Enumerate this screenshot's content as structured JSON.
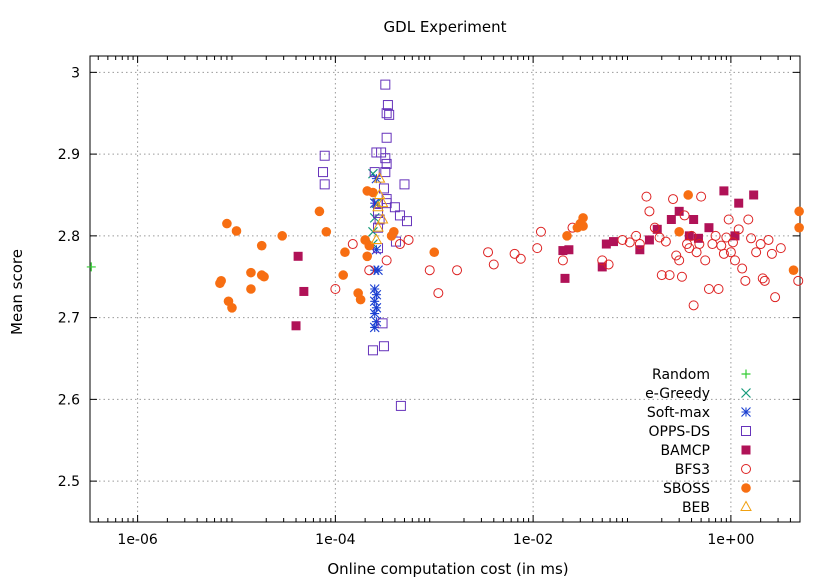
{
  "chart_data": {
    "type": "scatter",
    "title": "GDL Experiment",
    "xlabel": "Online computation cost (in ms)",
    "ylabel": "Mean score",
    "xscale": "log",
    "xlim": [
      3.3e-07,
      5
    ],
    "ylim": [
      2.45,
      3.02
    ],
    "xticks": [
      {
        "value": 1e-06,
        "label": "1e-06"
      },
      {
        "value": 0.0001,
        "label": "1e-04"
      },
      {
        "value": 0.01,
        "label": "1e-02"
      },
      {
        "value": 1,
        "label": "1e+00"
      }
    ],
    "yticks": [
      {
        "value": 2.5,
        "label": "2.5"
      },
      {
        "value": 2.6,
        "label": "2.6"
      },
      {
        "value": 2.7,
        "label": "2.7"
      },
      {
        "value": 2.8,
        "label": "2.8"
      },
      {
        "value": 2.9,
        "label": "2.9"
      },
      {
        "value": 3,
        "label": "3"
      }
    ],
    "grid": true,
    "legend_position": "bottom-right",
    "series": [
      {
        "name": "Random",
        "marker": "plus",
        "color": "#33cc33",
        "points": [
          [
            3.4e-07,
            2.762
          ]
        ]
      },
      {
        "name": "e-Greedy",
        "marker": "x",
        "color": "#159a7a",
        "points": [
          [
            0.00024,
            2.876
          ],
          [
            0.00024,
            2.805
          ],
          [
            0.00025,
            2.822
          ],
          [
            0.00026,
            2.84
          ],
          [
            0.00024,
            2.79
          ]
        ]
      },
      {
        "name": "Soft-max",
        "marker": "asterisk",
        "color": "#1a3fd1",
        "points": [
          [
            0.00025,
            2.758
          ],
          [
            0.00027,
            2.758
          ],
          [
            0.00025,
            2.735
          ],
          [
            0.00026,
            2.728
          ],
          [
            0.00025,
            2.72
          ],
          [
            0.00026,
            2.712
          ],
          [
            0.00025,
            2.705
          ],
          [
            0.00026,
            2.695
          ],
          [
            0.00025,
            2.688
          ],
          [
            0.00026,
            2.783
          ],
          [
            0.00025,
            2.84
          ],
          [
            0.00026,
            2.87
          ]
        ]
      },
      {
        "name": "OPPS-DS",
        "marker": "square-open",
        "color": "#6633bb",
        "points": [
          [
            0.00032,
            2.985
          ],
          [
            0.00034,
            2.96
          ],
          [
            0.00033,
            2.95
          ],
          [
            0.00035,
            2.948
          ],
          [
            0.00033,
            2.92
          ],
          [
            0.00032,
            2.895
          ],
          [
            0.00033,
            2.888
          ],
          [
            0.00032,
            2.878
          ],
          [
            0.00026,
            2.902
          ],
          [
            0.00029,
            2.902
          ],
          [
            0.00025,
            2.878
          ],
          [
            7.8e-05,
            2.898
          ],
          [
            7.5e-05,
            2.878
          ],
          [
            7.8e-05,
            2.863
          ],
          [
            0.0005,
            2.863
          ],
          [
            0.00031,
            2.858
          ],
          [
            0.00033,
            2.845
          ],
          [
            0.00027,
            2.84
          ],
          [
            0.00027,
            2.828
          ],
          [
            0.00028,
            2.82
          ],
          [
            0.00033,
            2.84
          ],
          [
            0.0004,
            2.835
          ],
          [
            0.00045,
            2.825
          ],
          [
            0.00053,
            2.818
          ],
          [
            0.00027,
            2.81
          ],
          [
            0.00041,
            2.793
          ],
          [
            0.00027,
            2.785
          ],
          [
            0.0003,
            2.693
          ],
          [
            0.00024,
            2.66
          ],
          [
            0.00031,
            2.665
          ],
          [
            0.00046,
            2.592
          ]
        ]
      },
      {
        "name": "BAMCP",
        "marker": "square-filled",
        "color": "#b01257",
        "points": [
          [
            4.2e-05,
            2.775
          ],
          [
            4.8e-05,
            2.732
          ],
          [
            4e-05,
            2.69
          ],
          [
            0.02,
            2.782
          ],
          [
            0.023,
            2.783
          ],
          [
            0.021,
            2.748
          ],
          [
            0.05,
            2.762
          ],
          [
            0.055,
            2.79
          ],
          [
            0.065,
            2.793
          ],
          [
            0.12,
            2.783
          ],
          [
            0.15,
            2.795
          ],
          [
            0.18,
            2.808
          ],
          [
            0.25,
            2.82
          ],
          [
            0.3,
            2.83
          ],
          [
            0.38,
            2.8
          ],
          [
            0.42,
            2.82
          ],
          [
            0.47,
            2.797
          ],
          [
            0.6,
            2.81
          ],
          [
            0.85,
            2.855
          ],
          [
            1.1,
            2.8
          ],
          [
            1.2,
            2.84
          ],
          [
            1.7,
            2.85
          ]
        ]
      },
      {
        "name": "BFS3",
        "marker": "circle-open",
        "color": "#dd2222",
        "points": [
          [
            0.0001,
            2.735
          ],
          [
            0.00015,
            2.79
          ],
          [
            0.00022,
            2.758
          ],
          [
            0.00033,
            2.77
          ],
          [
            0.00045,
            2.79
          ],
          [
            0.00055,
            2.795
          ],
          [
            0.0009,
            2.758
          ],
          [
            0.0011,
            2.73
          ],
          [
            0.0017,
            2.758
          ],
          [
            0.0035,
            2.78
          ],
          [
            0.004,
            2.765
          ],
          [
            0.0065,
            2.778
          ],
          [
            0.0075,
            2.772
          ],
          [
            0.011,
            2.785
          ],
          [
            0.012,
            2.805
          ],
          [
            0.02,
            2.77
          ],
          [
            0.025,
            2.81
          ],
          [
            0.05,
            2.77
          ],
          [
            0.058,
            2.765
          ],
          [
            0.08,
            2.795
          ],
          [
            0.095,
            2.792
          ],
          [
            0.11,
            2.8
          ],
          [
            0.12,
            2.79
          ],
          [
            0.14,
            2.848
          ],
          [
            0.15,
            2.83
          ],
          [
            0.17,
            2.81
          ],
          [
            0.19,
            2.798
          ],
          [
            0.2,
            2.752
          ],
          [
            0.22,
            2.793
          ],
          [
            0.24,
            2.752
          ],
          [
            0.26,
            2.845
          ],
          [
            0.28,
            2.776
          ],
          [
            0.3,
            2.77
          ],
          [
            0.32,
            2.75
          ],
          [
            0.34,
            2.825
          ],
          [
            0.36,
            2.79
          ],
          [
            0.38,
            2.785
          ],
          [
            0.4,
            2.8
          ],
          [
            0.42,
            2.715
          ],
          [
            0.45,
            2.78
          ],
          [
            0.48,
            2.79
          ],
          [
            0.5,
            2.848
          ],
          [
            0.55,
            2.77
          ],
          [
            0.6,
            2.735
          ],
          [
            0.65,
            2.79
          ],
          [
            0.7,
            2.8
          ],
          [
            0.75,
            2.735
          ],
          [
            0.8,
            2.788
          ],
          [
            0.85,
            2.778
          ],
          [
            0.9,
            2.798
          ],
          [
            0.95,
            2.82
          ],
          [
            1.0,
            2.78
          ],
          [
            1.05,
            2.792
          ],
          [
            1.1,
            2.77
          ],
          [
            1.2,
            2.808
          ],
          [
            1.3,
            2.76
          ],
          [
            1.4,
            2.745
          ],
          [
            1.5,
            2.82
          ],
          [
            1.6,
            2.797
          ],
          [
            1.8,
            2.78
          ],
          [
            2.0,
            2.79
          ],
          [
            2.1,
            2.748
          ],
          [
            2.2,
            2.745
          ],
          [
            2.4,
            2.795
          ],
          [
            2.6,
            2.778
          ],
          [
            2.8,
            2.725
          ],
          [
            3.2,
            2.785
          ],
          [
            4.8,
            2.745
          ]
        ]
      },
      {
        "name": "SBOSS",
        "marker": "circle-filled",
        "color": "#f76e12",
        "points": [
          [
            7e-06,
            2.745
          ],
          [
            6.8e-06,
            2.742
          ],
          [
            8e-06,
            2.815
          ],
          [
            8.3e-06,
            2.72
          ],
          [
            9e-06,
            2.712
          ],
          [
            1e-05,
            2.806
          ],
          [
            1.4e-05,
            2.755
          ],
          [
            1.4e-05,
            2.735
          ],
          [
            1.8e-05,
            2.788
          ],
          [
            1.8e-05,
            2.752
          ],
          [
            1.9e-05,
            2.75
          ],
          [
            2.9e-05,
            2.8
          ],
          [
            6.9e-05,
            2.83
          ],
          [
            8.1e-05,
            2.805
          ],
          [
            0.00012,
            2.752
          ],
          [
            0.000125,
            2.78
          ],
          [
            0.00017,
            2.73
          ],
          [
            0.00018,
            2.722
          ],
          [
            0.0002,
            2.795
          ],
          [
            0.00021,
            2.855
          ],
          [
            0.00021,
            2.775
          ],
          [
            0.00022,
            2.788
          ],
          [
            0.00024,
            2.853
          ],
          [
            0.00037,
            2.8
          ],
          [
            0.00039,
            2.805
          ],
          [
            0.001,
            2.78
          ],
          [
            0.028,
            2.81
          ],
          [
            0.03,
            2.815
          ],
          [
            0.032,
            2.822
          ],
          [
            0.022,
            2.8
          ],
          [
            0.3,
            2.805
          ],
          [
            0.37,
            2.85
          ],
          [
            4.3,
            2.758
          ],
          [
            4.9,
            2.83
          ],
          [
            4.9,
            2.81
          ],
          [
            0.032,
            2.812
          ]
        ]
      },
      {
        "name": "BEB",
        "marker": "triangle-open",
        "color": "#f0a010",
        "points": [
          [
            0.00028,
            2.87
          ],
          [
            0.0003,
            2.84
          ],
          [
            0.00027,
            2.835
          ],
          [
            0.0003,
            2.82
          ],
          [
            0.00027,
            2.81
          ],
          [
            0.00026,
            2.795
          ],
          [
            0.00028,
            2.85
          ]
        ]
      }
    ]
  }
}
